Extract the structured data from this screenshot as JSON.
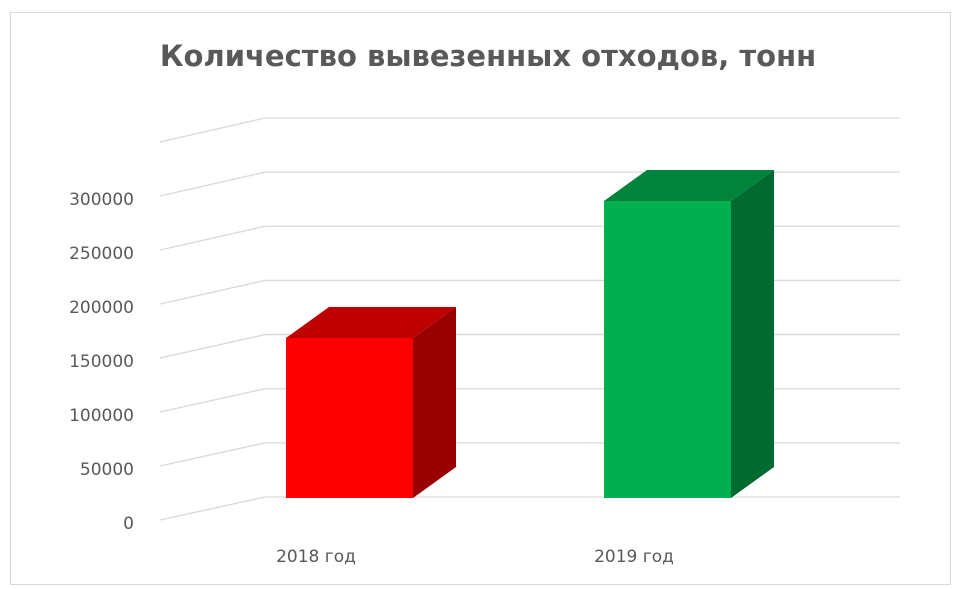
{
  "chart_data": {
    "type": "bar3d",
    "title": "Количество вывезенных отходов, тонн",
    "categories": [
      "2018 год",
      "2019 год"
    ],
    "values": [
      160000,
      297000
    ],
    "colors": [
      "#ff0000",
      "#00b050"
    ],
    "ylim": [
      0,
      350000
    ],
    "yticks": [
      0,
      50000,
      100000,
      150000,
      200000,
      250000,
      300000
    ],
    "grid": true
  }
}
